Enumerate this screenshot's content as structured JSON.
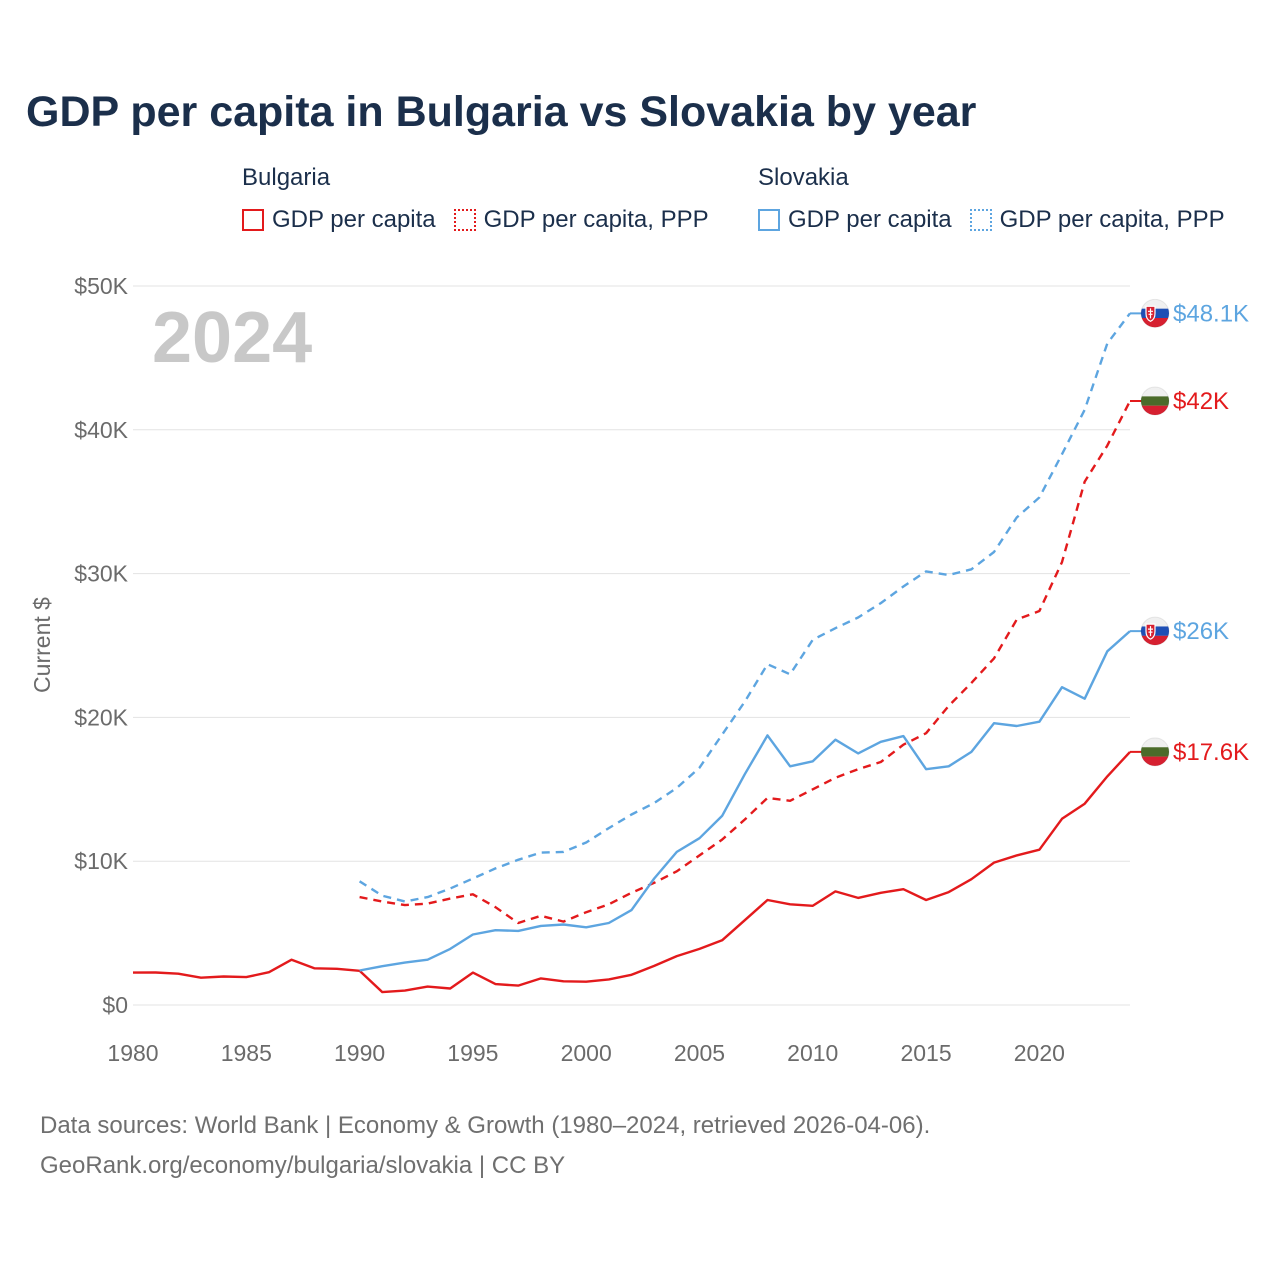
{
  "title": "GDP per capita in Bulgaria vs Slovakia by year",
  "legend": {
    "groups": [
      {
        "name": "Bulgaria",
        "color": "#e31a1c",
        "items": [
          {
            "label": "GDP per capita",
            "style": "solid"
          },
          {
            "label": "GDP per capita, PPP",
            "style": "dotted"
          }
        ]
      },
      {
        "name": "Slovakia",
        "color": "#5da5e0",
        "items": [
          {
            "label": "GDP per capita",
            "style": "solid"
          },
          {
            "label": "GDP per capita, PPP",
            "style": "dotted"
          }
        ]
      }
    ]
  },
  "year_label": "2024",
  "footer": {
    "line1": "Data sources: World Bank | Economy & Growth (1980–2024, retrieved 2026-04-06).",
    "line2": "GeoRank.org/economy/bulgaria/slovakia | CC BY"
  },
  "chart_data": {
    "type": "line",
    "title": "GDP per capita in Bulgaria vs Slovakia by year",
    "xlabel": "",
    "ylabel": "Current $",
    "xlim": [
      1980,
      2024
    ],
    "ylim": [
      0,
      50000
    ],
    "x_ticks": [
      1980,
      1985,
      1990,
      1995,
      2000,
      2005,
      2010,
      2015,
      2020
    ],
    "y_ticks": [
      0,
      10000,
      20000,
      30000,
      40000,
      50000
    ],
    "y_tick_labels": [
      "$0",
      "$10K",
      "$20K",
      "$30K",
      "$40K",
      "$50K"
    ],
    "grid": true,
    "series": [
      {
        "name": "Bulgaria GDP per capita",
        "country": "Bulgaria",
        "color": "#e31a1c",
        "dash": "solid",
        "end_label": "$17.6K",
        "flag": "bulgaria",
        "x": [
          1980,
          1981,
          1982,
          1983,
          1984,
          1985,
          1986,
          1987,
          1988,
          1989,
          1990,
          1991,
          1992,
          1993,
          1994,
          1995,
          1996,
          1997,
          1998,
          1999,
          2000,
          2001,
          2002,
          2003,
          2004,
          2005,
          2006,
          2007,
          2008,
          2009,
          2010,
          2011,
          2012,
          2013,
          2014,
          2015,
          2016,
          2017,
          2018,
          2019,
          2020,
          2021,
          2022,
          2023,
          2024
        ],
        "values": [
          2250,
          2260,
          2180,
          1900,
          1980,
          1940,
          2280,
          3150,
          2550,
          2520,
          2380,
          900,
          1000,
          1280,
          1150,
          2250,
          1450,
          1350,
          1850,
          1650,
          1620,
          1780,
          2100,
          2720,
          3400,
          3900,
          4500,
          5900,
          7300,
          7000,
          6900,
          7900,
          7450,
          7800,
          8050,
          7300,
          7850,
          8750,
          9900,
          10400,
          10800,
          12950,
          14000,
          15900,
          17600
        ]
      },
      {
        "name": "Bulgaria GDP per capita, PPP",
        "country": "Bulgaria",
        "color": "#e31a1c",
        "dash": "dashed",
        "end_label": "$42K",
        "flag": "bulgaria",
        "x": [
          1990,
          1991,
          1992,
          1993,
          1994,
          1995,
          1996,
          1997,
          1998,
          1999,
          2000,
          2001,
          2002,
          2003,
          2004,
          2005,
          2006,
          2007,
          2008,
          2009,
          2010,
          2011,
          2012,
          2013,
          2014,
          2015,
          2016,
          2017,
          2018,
          2019,
          2020,
          2021,
          2022,
          2023,
          2024
        ],
        "values": [
          7500,
          7200,
          6950,
          7050,
          7400,
          7700,
          6800,
          5700,
          6200,
          5800,
          6450,
          7000,
          7800,
          8500,
          9300,
          10400,
          11500,
          12900,
          14400,
          14200,
          15000,
          15800,
          16400,
          16900,
          18100,
          18900,
          20800,
          22400,
          24100,
          26800,
          27400,
          30800,
          36400,
          38900,
          42000
        ]
      },
      {
        "name": "Slovakia GDP per capita",
        "country": "Slovakia",
        "color": "#5da5e0",
        "dash": "solid",
        "end_label": "$26K",
        "flag": "slovakia",
        "x": [
          1990,
          1991,
          1992,
          1993,
          1994,
          1995,
          1996,
          1997,
          1998,
          1999,
          2000,
          2001,
          2002,
          2003,
          2004,
          2005,
          2006,
          2007,
          2008,
          2009,
          2010,
          2011,
          2012,
          2013,
          2014,
          2015,
          2016,
          2017,
          2018,
          2019,
          2020,
          2021,
          2022,
          2023,
          2024
        ],
        "values": [
          2400,
          2700,
          2950,
          3150,
          3900,
          4900,
          5200,
          5150,
          5500,
          5600,
          5400,
          5700,
          6600,
          8800,
          10650,
          11600,
          13150,
          16050,
          18750,
          16600,
          16950,
          18450,
          17500,
          18300,
          18700,
          16400,
          16600,
          17600,
          19600,
          19400,
          19700,
          22100,
          21300,
          24600,
          26000
        ]
      },
      {
        "name": "Slovakia GDP per capita, PPP",
        "country": "Slovakia",
        "color": "#5da5e0",
        "dash": "dashed",
        "end_label": "$48.1K",
        "flag": "slovakia",
        "x": [
          1990,
          1991,
          1992,
          1993,
          1994,
          1995,
          1996,
          1997,
          1998,
          1999,
          2000,
          2001,
          2002,
          2003,
          2004,
          2005,
          2006,
          2007,
          2008,
          2009,
          2010,
          2011,
          2012,
          2013,
          2014,
          2015,
          2016,
          2017,
          2018,
          2019,
          2020,
          2021,
          2022,
          2023,
          2024
        ],
        "values": [
          8600,
          7600,
          7200,
          7500,
          8100,
          8800,
          9500,
          10100,
          10600,
          10650,
          11300,
          12300,
          13250,
          14050,
          15100,
          16500,
          18800,
          21100,
          23700,
          23000,
          25400,
          26200,
          26950,
          27950,
          29100,
          30150,
          29900,
          30300,
          31500,
          33900,
          35300,
          38300,
          41400,
          46000,
          48100
        ]
      }
    ]
  }
}
